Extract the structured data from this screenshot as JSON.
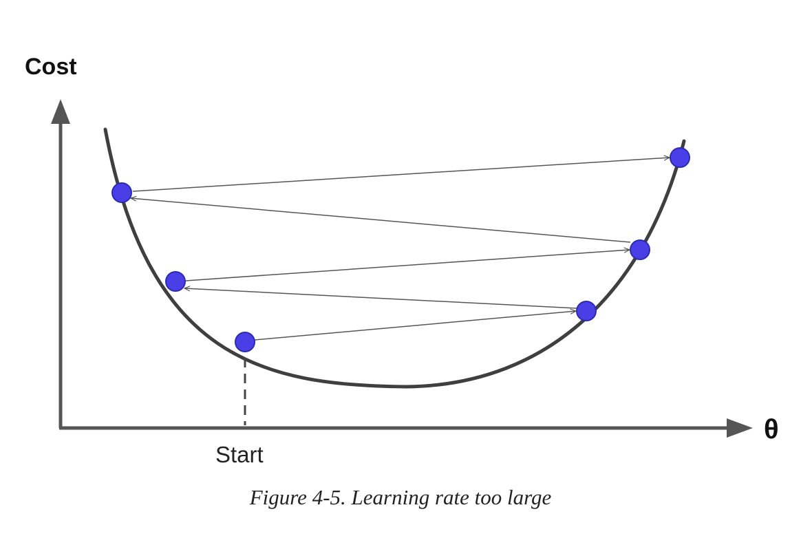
{
  "diagram": {
    "y_axis_label": "Cost",
    "x_axis_label": "θ",
    "start_label": "Start",
    "caption": "Figure 4-5. Learning rate too large",
    "colors": {
      "axis": "#555555",
      "curve": "#3f3f3f",
      "arrow": "#555555",
      "point_fill": "#4a3fe6",
      "point_stroke": "#2b2bb0",
      "text": "#111111",
      "caption": "#222222"
    },
    "steps": [
      {
        "step": 0,
        "label": "Start"
      },
      {
        "step": 1
      },
      {
        "step": 2
      },
      {
        "step": 3
      },
      {
        "step": 4
      },
      {
        "step": 5
      }
    ]
  }
}
